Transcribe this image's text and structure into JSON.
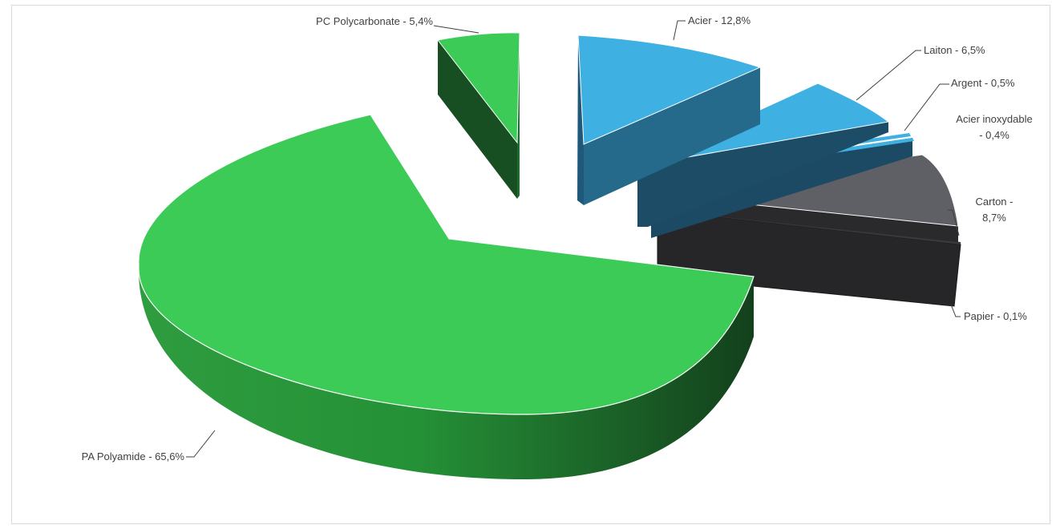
{
  "chart_data": {
    "type": "pie",
    "style": "3d-exploded",
    "legend": "none",
    "colors": {
      "plastic": "#3ccb57",
      "metal": "#3eb0e2",
      "carton": "#5f6066",
      "paper": "#2b2b2e"
    },
    "slices": [
      {
        "key": "pa",
        "label": "PA Polyamide - 65,6%",
        "value": 65.6,
        "group": "plastic"
      },
      {
        "key": "pc",
        "label": "PC Polycarbonate - 5,4%",
        "value": 5.4,
        "group": "plastic"
      },
      {
        "key": "acier",
        "label": "Acier - 12,8%",
        "value": 12.8,
        "group": "metal"
      },
      {
        "key": "laiton",
        "label": "Laiton - 6,5%",
        "value": 6.5,
        "group": "metal"
      },
      {
        "key": "argent",
        "label": "Argent - 0,5%",
        "value": 0.5,
        "group": "metal"
      },
      {
        "key": "inox",
        "label": [
          "Acier inoxydable",
          "- 0,4%"
        ],
        "value": 0.4,
        "group": "metal"
      },
      {
        "key": "carton",
        "label": [
          "Carton -",
          "8,7%"
        ],
        "value": 8.7,
        "group": "carton"
      },
      {
        "key": "papier",
        "label": "Papier - 0,1%",
        "value": 0.1,
        "group": "paper"
      }
    ]
  }
}
